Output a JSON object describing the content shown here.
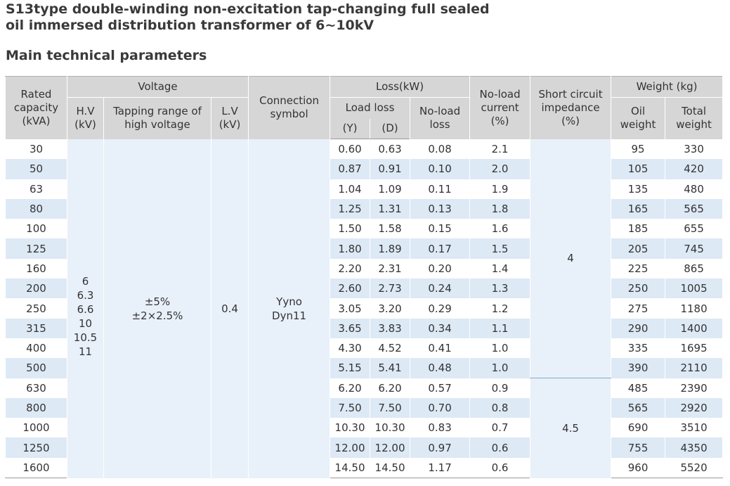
{
  "title": {
    "line1": "S13type double-winding non-excitation tap-changing full sealed",
    "line2": "oil immersed distribution transformer of 6~10kV"
  },
  "subtitle": "Main technical parameters",
  "table": {
    "headers": {
      "rated_capacity": [
        "Rated",
        "capacity",
        "(kVA)"
      ],
      "voltage": "Voltage",
      "hv": [
        "H.V",
        "(kV)"
      ],
      "tapping": [
        "Tapping range of",
        "high voltage"
      ],
      "lv": [
        "L.V",
        "(kV)"
      ],
      "connection": [
        "Connection",
        "symbol"
      ],
      "loss": "Loss(kW)",
      "load_loss": "Load loss",
      "load_loss_y": "(Y)",
      "load_loss_d": "(D)",
      "noload_loss": [
        "No-load",
        "loss"
      ],
      "noload_current": [
        "No-load",
        "current",
        "(%)"
      ],
      "short_circuit": [
        "Short circuit",
        "impedance",
        "(%)"
      ],
      "weight": "Weight (kg)",
      "oil_weight": [
        "Oil",
        "weight"
      ],
      "total_weight": [
        "Total",
        "weight"
      ]
    },
    "merged": {
      "hv_values": [
        "6",
        "6.3",
        "6.6",
        "10",
        "10.5",
        "11"
      ],
      "tapping_values": [
        "±5%",
        "±2×2.5%"
      ],
      "lv_value": "0.4",
      "connection_values": [
        "Yyno",
        "Dyn11"
      ],
      "short_circuit_a": "4",
      "short_circuit_b": "4.5"
    },
    "rows": [
      {
        "capacity": "30",
        "load_y": "0.60",
        "load_d": "0.63",
        "noload_loss": "0.08",
        "noload_current": "2.1",
        "oil": "95",
        "total": "330"
      },
      {
        "capacity": "50",
        "load_y": "0.87",
        "load_d": "0.91",
        "noload_loss": "0.10",
        "noload_current": "2.0",
        "oil": "105",
        "total": "420"
      },
      {
        "capacity": "63",
        "load_y": "1.04",
        "load_d": "1.09",
        "noload_loss": "0.11",
        "noload_current": "1.9",
        "oil": "135",
        "total": "480"
      },
      {
        "capacity": "80",
        "load_y": "1.25",
        "load_d": "1.31",
        "noload_loss": "0.13",
        "noload_current": "1.8",
        "oil": "165",
        "total": "565"
      },
      {
        "capacity": "100",
        "load_y": "1.50",
        "load_d": "1.58",
        "noload_loss": "0.15",
        "noload_current": "1.6",
        "oil": "185",
        "total": "655"
      },
      {
        "capacity": "125",
        "load_y": "1.80",
        "load_d": "1.89",
        "noload_loss": "0.17",
        "noload_current": "1.5",
        "oil": "205",
        "total": "745"
      },
      {
        "capacity": "160",
        "load_y": "2.20",
        "load_d": "2.31",
        "noload_loss": "0.20",
        "noload_current": "1.4",
        "oil": "225",
        "total": "865"
      },
      {
        "capacity": "200",
        "load_y": "2.60",
        "load_d": "2.73",
        "noload_loss": "0.24",
        "noload_current": "1.3",
        "oil": "250",
        "total": "1005"
      },
      {
        "capacity": "250",
        "load_y": "3.05",
        "load_d": "3.20",
        "noload_loss": "0.29",
        "noload_current": "1.2",
        "oil": "275",
        "total": "1180"
      },
      {
        "capacity": "315",
        "load_y": "3.65",
        "load_d": "3.83",
        "noload_loss": "0.34",
        "noload_current": "1.1",
        "oil": "290",
        "total": "1400"
      },
      {
        "capacity": "400",
        "load_y": "4.30",
        "load_d": "4.52",
        "noload_loss": "0.41",
        "noload_current": "1.0",
        "oil": "335",
        "total": "1695"
      },
      {
        "capacity": "500",
        "load_y": "5.15",
        "load_d": "5.41",
        "noload_loss": "0.48",
        "noload_current": "1.0",
        "oil": "390",
        "total": "2110"
      },
      {
        "capacity": "630",
        "load_y": "6.20",
        "load_d": "6.20",
        "noload_loss": "0.57",
        "noload_current": "0.9",
        "oil": "485",
        "total": "2390"
      },
      {
        "capacity": "800",
        "load_y": "7.50",
        "load_d": "7.50",
        "noload_loss": "0.70",
        "noload_current": "0.8",
        "oil": "565",
        "total": "2920"
      },
      {
        "capacity": "1000",
        "load_y": "10.30",
        "load_d": "10.30",
        "noload_loss": "0.83",
        "noload_current": "0.7",
        "oil": "690",
        "total": "3510"
      },
      {
        "capacity": "1250",
        "load_y": "12.00",
        "load_d": "12.00",
        "noload_loss": "0.97",
        "noload_current": "0.6",
        "oil": "755",
        "total": "4350"
      },
      {
        "capacity": "1600",
        "load_y": "14.50",
        "load_d": "14.50",
        "noload_loss": "1.17",
        "noload_current": "0.6",
        "oil": "960",
        "total": "5520"
      }
    ]
  }
}
